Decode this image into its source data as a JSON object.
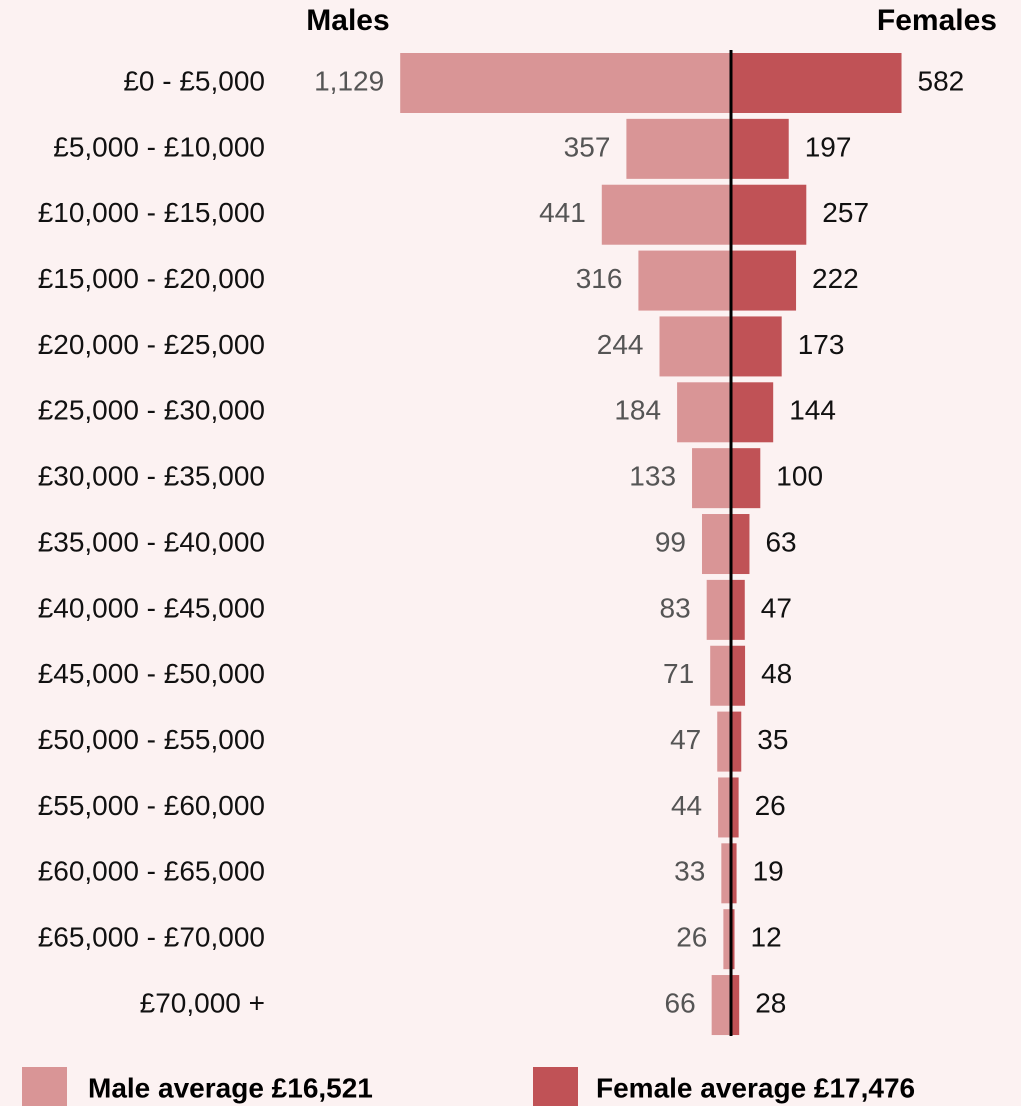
{
  "chart_data": {
    "type": "bar",
    "categories": [
      "£0 - £5,000",
      "£5,000 - £10,000",
      "£10,000 - £15,000",
      "£15,000 - £20,000",
      "£20,000 - £25,000",
      "£25,000 - £30,000",
      "£30,000 - £35,000",
      "£35,000 - £40,000",
      "£40,000 - £45,000",
      "£45,000 - £50,000",
      "£50,000 - £55,000",
      "£55,000 - £60,000",
      "£60,000 - £65,000",
      "£65,000 - £70,000",
      "£70,000 +"
    ],
    "series": [
      {
        "name": "Males",
        "color": "#d99596",
        "values": [
          1129,
          357,
          441,
          316,
          244,
          184,
          133,
          99,
          83,
          71,
          47,
          44,
          33,
          26,
          66
        ],
        "value_labels": [
          "1,129",
          "357",
          "441",
          "316",
          "244",
          "184",
          "133",
          "99",
          "83",
          "71",
          "47",
          "44",
          "33",
          "26",
          "66"
        ]
      },
      {
        "name": "Females",
        "color": "#c05256",
        "values": [
          582,
          197,
          257,
          222,
          173,
          144,
          100,
          63,
          47,
          48,
          35,
          26,
          19,
          12,
          28
        ]
      }
    ],
    "legend": [
      "Male average £16,521",
      "Female average £17,476"
    ]
  }
}
